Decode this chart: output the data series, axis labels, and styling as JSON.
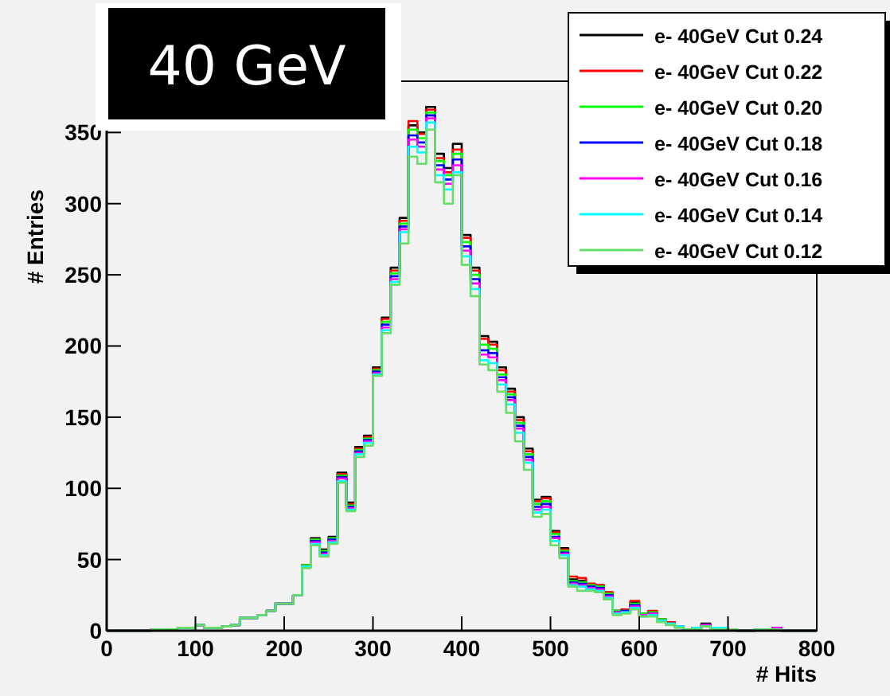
{
  "chart_data": {
    "type": "histogram",
    "title": "40 GeV",
    "xlabel": "# Hits",
    "ylabel": "# Entries",
    "bins": [
      0,
      10,
      20,
      30,
      40,
      50,
      60,
      70,
      80,
      90,
      100,
      110,
      120,
      130,
      140,
      150,
      160,
      170,
      180,
      190,
      200,
      210,
      220,
      230,
      240,
      250,
      260,
      270,
      280,
      290,
      300,
      310,
      320,
      330,
      340,
      350,
      360,
      370,
      380,
      390,
      400,
      410,
      420,
      430,
      440,
      450,
      460,
      470,
      480,
      490,
      500,
      510,
      520,
      530,
      540,
      550,
      560,
      570,
      580,
      590,
      600,
      610,
      620,
      630,
      640,
      650,
      660,
      670,
      680,
      690,
      700,
      710,
      720,
      730,
      740,
      750,
      760,
      770,
      780,
      790,
      800
    ],
    "series": [
      {
        "name": "e- 40GeV Cut 0.24",
        "color": "#000000",
        "values": [
          0,
          0,
          0,
          0,
          0,
          1,
          1,
          1,
          2,
          2,
          4,
          2,
          2,
          3,
          4,
          9,
          9,
          11,
          14,
          19,
          19,
          25,
          46,
          65,
          57,
          66,
          111,
          90,
          129,
          137,
          185,
          220,
          255,
          290,
          355,
          350,
          368,
          335,
          325,
          342,
          278,
          255,
          207,
          203,
          185,
          170,
          150,
          128,
          92,
          94,
          70,
          58,
          36,
          35,
          33,
          32,
          27,
          14,
          15,
          20,
          12,
          13,
          8,
          6,
          3,
          1,
          2,
          5,
          2,
          2,
          1,
          0,
          0,
          1,
          1,
          2,
          0,
          0,
          0,
          0
        ]
      },
      {
        "name": "e- 40GeV Cut 0.22",
        "color": "#ff0000",
        "values": [
          0,
          0,
          0,
          0,
          0,
          1,
          1,
          1,
          2,
          2,
          4,
          2,
          2,
          3,
          4,
          9,
          9,
          11,
          14,
          19,
          19,
          25,
          46,
          64,
          56,
          65,
          110,
          89,
          128,
          136,
          184,
          219,
          253,
          288,
          358,
          349,
          366,
          332,
          322,
          338,
          276,
          253,
          205,
          201,
          183,
          168,
          148,
          126,
          91,
          93,
          69,
          57,
          38,
          37,
          33,
          32,
          27,
          14,
          15,
          21,
          12,
          14,
          8,
          6,
          3,
          1,
          2,
          4,
          2,
          2,
          1,
          0,
          0,
          1,
          1,
          2,
          0,
          0,
          0,
          0
        ]
      },
      {
        "name": "e- 40GeV Cut 0.20",
        "color": "#00ff00",
        "values": [
          0,
          0,
          0,
          0,
          0,
          1,
          1,
          1,
          2,
          2,
          4,
          2,
          2,
          3,
          4,
          9,
          9,
          11,
          14,
          19,
          19,
          25,
          46,
          64,
          56,
          65,
          109,
          88,
          127,
          135,
          183,
          217,
          251,
          286,
          352,
          346,
          364,
          330,
          320,
          335,
          273,
          250,
          201,
          198,
          180,
          166,
          146,
          124,
          89,
          91,
          68,
          56,
          35,
          34,
          32,
          31,
          26,
          14,
          14,
          19,
          12,
          13,
          8,
          5,
          3,
          1,
          2,
          4,
          2,
          2,
          1,
          0,
          0,
          1,
          1,
          2,
          0,
          0,
          0,
          0
        ]
      },
      {
        "name": "e- 40GeV Cut 0.18",
        "color": "#0000ff",
        "values": [
          0,
          0,
          0,
          0,
          0,
          1,
          1,
          1,
          2,
          2,
          4,
          2,
          2,
          3,
          4,
          9,
          9,
          11,
          14,
          19,
          19,
          25,
          45,
          63,
          55,
          64,
          108,
          87,
          126,
          134,
          182,
          215,
          249,
          284,
          348,
          343,
          362,
          327,
          317,
          331,
          270,
          247,
          197,
          195,
          178,
          164,
          144,
          122,
          87,
          89,
          66,
          55,
          34,
          33,
          31,
          30,
          25,
          13,
          14,
          18,
          11,
          12,
          7,
          5,
          3,
          1,
          2,
          4,
          2,
          2,
          1,
          0,
          0,
          1,
          1,
          2,
          0,
          0,
          0,
          0
        ]
      },
      {
        "name": "e- 40GeV Cut 0.16",
        "color": "#ff00ff",
        "values": [
          0,
          0,
          0,
          0,
          0,
          1,
          1,
          1,
          2,
          2,
          4,
          2,
          2,
          3,
          4,
          9,
          9,
          11,
          14,
          19,
          19,
          25,
          45,
          62,
          54,
          63,
          107,
          86,
          125,
          133,
          181,
          213,
          247,
          282,
          345,
          340,
          360,
          324,
          314,
          327,
          267,
          244,
          194,
          192,
          176,
          162,
          142,
          120,
          85,
          87,
          65,
          54,
          33,
          32,
          30,
          29,
          24,
          13,
          13,
          17,
          11,
          12,
          7,
          5,
          3,
          1,
          2,
          4,
          2,
          2,
          1,
          0,
          0,
          1,
          1,
          2,
          0,
          0,
          0,
          0
        ]
      },
      {
        "name": "e- 40GeV Cut 0.14",
        "color": "#00ffff",
        "values": [
          0,
          0,
          0,
          0,
          0,
          1,
          1,
          1,
          2,
          2,
          4,
          2,
          2,
          3,
          4,
          9,
          9,
          11,
          14,
          19,
          19,
          25,
          45,
          61,
          53,
          62,
          105,
          85,
          124,
          132,
          180,
          211,
          245,
          280,
          340,
          336,
          357,
          320,
          310,
          322,
          263,
          240,
          190,
          188,
          173,
          159,
          139,
          118,
          83,
          85,
          63,
          53,
          32,
          31,
          29,
          28,
          23,
          12,
          13,
          16,
          10,
          11,
          7,
          5,
          3,
          1,
          2,
          3,
          2,
          2,
          1,
          0,
          0,
          1,
          1,
          1,
          0,
          0,
          0,
          0
        ]
      },
      {
        "name": "e- 40GeV Cut 0.12",
        "color": "#66dd66",
        "values": [
          0,
          0,
          0,
          0,
          0,
          1,
          1,
          1,
          2,
          2,
          4,
          2,
          2,
          3,
          4,
          9,
          9,
          11,
          14,
          19,
          19,
          25,
          44,
          60,
          52,
          61,
          104,
          84,
          122,
          130,
          179,
          209,
          243,
          272,
          333,
          328,
          352,
          315,
          300,
          320,
          257,
          235,
          187,
          183,
          168,
          153,
          133,
          113,
          80,
          82,
          60,
          51,
          31,
          28,
          28,
          27,
          22,
          11,
          12,
          15,
          10,
          10,
          6,
          4,
          2,
          1,
          1,
          3,
          1,
          1,
          1,
          0,
          0,
          1,
          1,
          1,
          0,
          0,
          0,
          0
        ]
      }
    ],
    "xlim": [
      0,
      800
    ],
    "ylim": [
      0,
      386
    ],
    "xticks": [
      0,
      100,
      200,
      300,
      400,
      500,
      600,
      700,
      800
    ],
    "yticks": [
      0,
      50,
      100,
      150,
      200,
      250,
      300,
      350
    ],
    "legend": "top right",
    "grid": false
  }
}
